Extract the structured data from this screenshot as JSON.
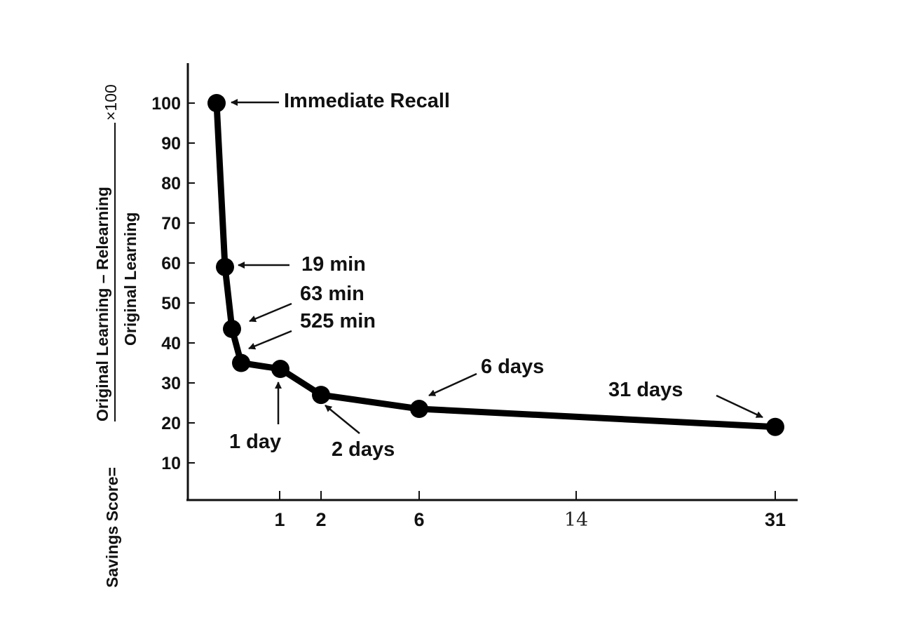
{
  "chart_data": {
    "type": "line",
    "x_axis_ticks": [
      "1",
      "2",
      "6",
      "14",
      "31"
    ],
    "y_axis_ticks": [
      "100",
      "90",
      "80",
      "70",
      "60",
      "50",
      "40",
      "30",
      "20",
      "10"
    ],
    "ylim": [
      0,
      110
    ],
    "grid": false,
    "y_label": {
      "prefix": "Savings Score=",
      "numerator": "Original Learning – Relearning",
      "denominator": "Original Learning",
      "multiplier": "×100"
    },
    "points": [
      {
        "interval": "Immediate Recall",
        "value": 100
      },
      {
        "interval": "19 min",
        "value": 59
      },
      {
        "interval": "63 min",
        "value": 43.5
      },
      {
        "interval": "525 min",
        "value": 35
      },
      {
        "interval": "1 day",
        "value": 33.5
      },
      {
        "interval": "2 days",
        "value": 27
      },
      {
        "interval": "6 days",
        "value": 23.5
      },
      {
        "interval": "31 days",
        "value": 19
      }
    ],
    "annotations": [
      "Immediate Recall",
      "19 min",
      "63 min",
      "525 min",
      "1 day",
      "2 days",
      "6 days",
      "31 days"
    ]
  }
}
